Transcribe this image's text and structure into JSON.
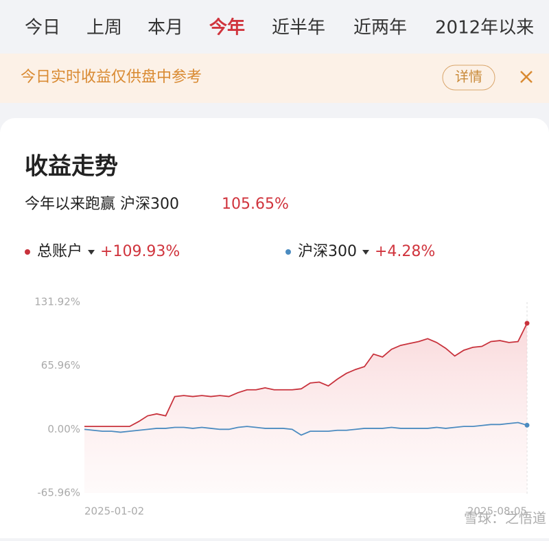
{
  "tabs": [
    "今日",
    "上周",
    "本月",
    "今年",
    "近半年",
    "近两年",
    "2012年以来"
  ],
  "active_tab": 3,
  "banner": {
    "text": "今日实时收益仅供盘中参考",
    "button": "详情"
  },
  "card": {
    "title": "收益走势",
    "subtitle": "今年以来跑赢 沪深300",
    "subtitle_value": "105.65%"
  },
  "watermark": "雪球：之悟道",
  "chart_data": {
    "type": "line",
    "categories": [
      "2025-01-02",
      null,
      null,
      null,
      null,
      null,
      null,
      null,
      null,
      null,
      null,
      null,
      null,
      null,
      null,
      null,
      null,
      null,
      null,
      null,
      null,
      null,
      null,
      null,
      null,
      null,
      null,
      null,
      null,
      null,
      null,
      null,
      null,
      null,
      null,
      null,
      null,
      null,
      null,
      null,
      null,
      null,
      null,
      null,
      null,
      null,
      null,
      null,
      null,
      "2025-08-05"
    ],
    "series": [
      {
        "name": "总账户",
        "summary": "+109.93%",
        "color": "#c8323c",
        "values": [
          3,
          3,
          3,
          3,
          3,
          3,
          8,
          14,
          16,
          14,
          34,
          35,
          34,
          35,
          34,
          35,
          34,
          38,
          41,
          41,
          43,
          41,
          41,
          41,
          42,
          48,
          49,
          45,
          52,
          58,
          62,
          65,
          78,
          75,
          83,
          87,
          89,
          91,
          94,
          90,
          84,
          76,
          82,
          85,
          86,
          91,
          92,
          90,
          91,
          109.93
        ]
      },
      {
        "name": "沪深300",
        "summary": "+4.28%",
        "color": "#4b8bc0",
        "values": [
          0,
          -1,
          -2,
          -2,
          -3,
          -2,
          -1,
          0,
          1,
          1,
          2,
          2,
          1,
          2,
          1,
          0,
          0,
          2,
          3,
          2,
          1,
          1,
          1,
          0,
          -6,
          -2,
          -2,
          -2,
          -1,
          -1,
          0,
          1,
          1,
          1,
          2,
          1,
          1,
          1,
          1,
          2,
          1,
          2,
          3,
          3,
          4,
          5,
          5,
          6,
          7,
          4.28
        ]
      }
    ],
    "ylim": [
      -65.96,
      131.92
    ],
    "yticks": [
      {
        "value": 131.92,
        "label": "131.92%"
      },
      {
        "value": 65.96,
        "label": "65.96%"
      },
      {
        "value": 0,
        "label": "0.00%"
      },
      {
        "value": -65.96,
        "label": "-65.96%"
      }
    ]
  }
}
